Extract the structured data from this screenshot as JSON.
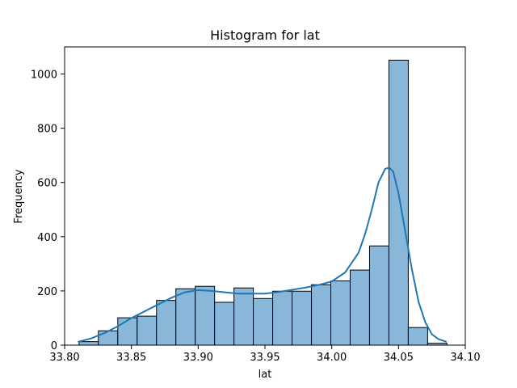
{
  "chart_data": {
    "type": "bar",
    "title": "Histogram for lat",
    "xlabel": "lat",
    "ylabel": "Frequency",
    "xlim": [
      33.8,
      34.1
    ],
    "ylim": [
      0,
      1100
    ],
    "xticks": [
      "33.80",
      "33.85",
      "33.90",
      "33.95",
      "34.00",
      "34.05",
      "34.10"
    ],
    "xtick_values": [
      33.8,
      33.85,
      33.9,
      33.95,
      34.0,
      34.05,
      34.1
    ],
    "yticks": [
      "0",
      "200",
      "400",
      "600",
      "800",
      "1000"
    ],
    "ytick_values": [
      0,
      200,
      400,
      600,
      800,
      1000
    ],
    "grid": false,
    "bar_color": "#89b7da",
    "bar_edge_color": "#000000",
    "kde_color": "#1f77b4",
    "bins": [
      {
        "start": 33.8108,
        "end": 33.8253,
        "count": 13
      },
      {
        "start": 33.8253,
        "end": 33.8398,
        "count": 53
      },
      {
        "start": 33.8398,
        "end": 33.8543,
        "count": 101
      },
      {
        "start": 33.8543,
        "end": 33.8688,
        "count": 107
      },
      {
        "start": 33.8688,
        "end": 33.8833,
        "count": 165
      },
      {
        "start": 33.8833,
        "end": 33.8978,
        "count": 208
      },
      {
        "start": 33.8978,
        "end": 33.9123,
        "count": 217
      },
      {
        "start": 33.9123,
        "end": 33.9268,
        "count": 158
      },
      {
        "start": 33.9268,
        "end": 33.9413,
        "count": 211
      },
      {
        "start": 33.9413,
        "end": 33.9558,
        "count": 172
      },
      {
        "start": 33.9558,
        "end": 33.9703,
        "count": 199
      },
      {
        "start": 33.9703,
        "end": 33.9848,
        "count": 199
      },
      {
        "start": 33.9848,
        "end": 33.9993,
        "count": 223
      },
      {
        "start": 33.9993,
        "end": 34.0138,
        "count": 237
      },
      {
        "start": 34.0138,
        "end": 34.0283,
        "count": 277
      },
      {
        "start": 34.0283,
        "end": 34.0428,
        "count": 366
      },
      {
        "start": 34.0428,
        "end": 34.0573,
        "count": 1051
      },
      {
        "start": 34.0573,
        "end": 34.0718,
        "count": 65
      },
      {
        "start": 34.0718,
        "end": 34.0863,
        "count": 7
      }
    ],
    "kde": {
      "x": [
        33.81,
        33.82,
        33.83,
        33.84,
        33.85,
        33.86,
        33.87,
        33.88,
        33.89,
        33.9,
        33.91,
        33.92,
        33.93,
        33.94,
        33.95,
        33.96,
        33.97,
        33.98,
        33.99,
        34.0,
        34.01,
        34.02,
        34.025,
        34.03,
        34.035,
        34.04,
        34.043,
        34.046,
        34.05,
        34.055,
        34.06,
        34.065,
        34.07,
        34.075,
        34.08,
        34.086
      ],
      "y": [
        12,
        25,
        45,
        70,
        100,
        125,
        150,
        175,
        195,
        203,
        200,
        195,
        190,
        190,
        190,
        196,
        204,
        212,
        222,
        235,
        268,
        340,
        410,
        500,
        600,
        650,
        655,
        640,
        560,
        420,
        280,
        160,
        85,
        40,
        22,
        12
      ]
    }
  }
}
